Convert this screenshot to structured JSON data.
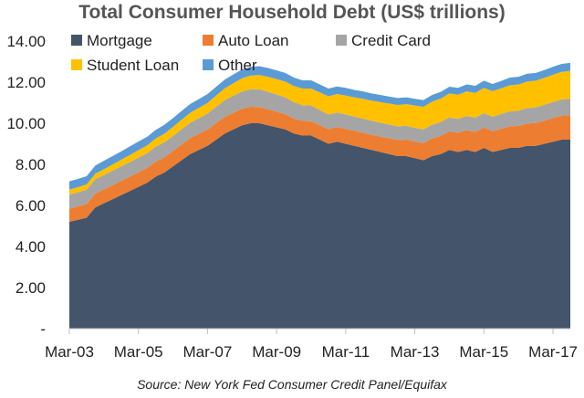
{
  "chart_data": {
    "type": "area",
    "stacked": true,
    "title": "Total Consumer Household Debt (US$ trillions)",
    "source": "Source: New York Fed Consumer Credit Panel/Equifax",
    "y_ticks": [
      "-",
      "2.00",
      "4.00",
      "6.00",
      "8.00",
      "10.00",
      "12.00",
      "14.00"
    ],
    "x_ticks": [
      "Mar-03",
      "Mar-05",
      "Mar-07",
      "Mar-09",
      "Mar-11",
      "Mar-13",
      "Mar-15",
      "Mar-17"
    ],
    "ylim": [
      0,
      14
    ],
    "grid": false,
    "legend_position": "top-left",
    "x": [
      "Mar-03",
      "Jun-03",
      "Sep-03",
      "Dec-03",
      "Mar-04",
      "Jun-04",
      "Sep-04",
      "Dec-04",
      "Mar-05",
      "Jun-05",
      "Sep-05",
      "Dec-05",
      "Mar-06",
      "Jun-06",
      "Sep-06",
      "Dec-06",
      "Mar-07",
      "Jun-07",
      "Sep-07",
      "Dec-07",
      "Mar-08",
      "Jun-08",
      "Sep-08",
      "Dec-08",
      "Mar-09",
      "Jun-09",
      "Sep-09",
      "Dec-09",
      "Mar-10",
      "Jun-10",
      "Sep-10",
      "Dec-10",
      "Mar-11",
      "Jun-11",
      "Sep-11",
      "Dec-11",
      "Mar-12",
      "Jun-12",
      "Sep-12",
      "Dec-12",
      "Mar-13",
      "Jun-13",
      "Sep-13",
      "Dec-13",
      "Mar-14",
      "Jun-14",
      "Sep-14",
      "Dec-14",
      "Mar-15",
      "Jun-15",
      "Sep-15",
      "Dec-15",
      "Mar-16",
      "Jun-16",
      "Sep-16",
      "Dec-16",
      "Mar-17",
      "Jun-17",
      "Sep-17"
    ],
    "series": [
      {
        "name": "Mortgage",
        "color": "#44546a",
        "values": [
          5.2,
          5.3,
          5.4,
          5.9,
          6.1,
          6.3,
          6.5,
          6.7,
          6.9,
          7.1,
          7.4,
          7.6,
          7.9,
          8.2,
          8.5,
          8.7,
          8.9,
          9.2,
          9.5,
          9.7,
          9.9,
          10.0,
          10.0,
          9.9,
          9.8,
          9.7,
          9.5,
          9.4,
          9.4,
          9.2,
          9.0,
          9.1,
          9.0,
          8.9,
          8.8,
          8.7,
          8.6,
          8.5,
          8.4,
          8.4,
          8.3,
          8.2,
          8.4,
          8.5,
          8.7,
          8.6,
          8.7,
          8.6,
          8.8,
          8.6,
          8.7,
          8.8,
          8.8,
          8.9,
          8.9,
          9.0,
          9.1,
          9.2,
          9.2
        ]
      },
      {
        "name": "Auto Loan",
        "color": "#ed7d31",
        "values": [
          0.64,
          0.65,
          0.66,
          0.67,
          0.68,
          0.69,
          0.69,
          0.7,
          0.71,
          0.72,
          0.73,
          0.74,
          0.75,
          0.77,
          0.78,
          0.79,
          0.8,
          0.81,
          0.81,
          0.81,
          0.81,
          0.8,
          0.79,
          0.78,
          0.76,
          0.74,
          0.73,
          0.71,
          0.7,
          0.7,
          0.71,
          0.71,
          0.72,
          0.73,
          0.74,
          0.74,
          0.75,
          0.77,
          0.78,
          0.8,
          0.81,
          0.83,
          0.86,
          0.88,
          0.91,
          0.93,
          0.96,
          0.97,
          0.99,
          1.01,
          1.03,
          1.05,
          1.07,
          1.09,
          1.11,
          1.13,
          1.15,
          1.17,
          1.19
        ]
      },
      {
        "name": "Credit Card",
        "color": "#a5a5a5",
        "values": [
          0.69,
          0.69,
          0.7,
          0.7,
          0.7,
          0.7,
          0.71,
          0.71,
          0.72,
          0.72,
          0.73,
          0.73,
          0.73,
          0.74,
          0.75,
          0.76,
          0.77,
          0.79,
          0.81,
          0.83,
          0.84,
          0.85,
          0.86,
          0.85,
          0.84,
          0.82,
          0.79,
          0.77,
          0.76,
          0.74,
          0.72,
          0.71,
          0.71,
          0.69,
          0.69,
          0.68,
          0.68,
          0.67,
          0.67,
          0.67,
          0.67,
          0.67,
          0.67,
          0.68,
          0.68,
          0.68,
          0.69,
          0.7,
          0.7,
          0.71,
          0.72,
          0.73,
          0.74,
          0.75,
          0.76,
          0.77,
          0.78,
          0.79,
          0.8
        ]
      },
      {
        "name": "Student Loan",
        "color": "#ffc000",
        "values": [
          0.24,
          0.25,
          0.26,
          0.27,
          0.28,
          0.3,
          0.32,
          0.34,
          0.36,
          0.38,
          0.4,
          0.42,
          0.44,
          0.46,
          0.48,
          0.5,
          0.52,
          0.55,
          0.58,
          0.61,
          0.64,
          0.67,
          0.7,
          0.73,
          0.75,
          0.77,
          0.79,
          0.81,
          0.83,
          0.86,
          0.88,
          0.9,
          0.92,
          0.94,
          0.96,
          0.98,
          1.0,
          1.02,
          1.04,
          1.06,
          1.08,
          1.1,
          1.12,
          1.14,
          1.16,
          1.18,
          1.2,
          1.21,
          1.23,
          1.24,
          1.25,
          1.27,
          1.28,
          1.29,
          1.3,
          1.31,
          1.33,
          1.34,
          1.36
        ]
      },
      {
        "name": "Other",
        "color": "#5b9bd5",
        "values": [
          0.4,
          0.4,
          0.4,
          0.4,
          0.41,
          0.41,
          0.41,
          0.42,
          0.42,
          0.42,
          0.42,
          0.43,
          0.43,
          0.43,
          0.43,
          0.43,
          0.43,
          0.43,
          0.43,
          0.43,
          0.43,
          0.43,
          0.43,
          0.43,
          0.42,
          0.42,
          0.41,
          0.4,
          0.4,
          0.39,
          0.38,
          0.37,
          0.37,
          0.36,
          0.36,
          0.35,
          0.35,
          0.34,
          0.34,
          0.33,
          0.33,
          0.33,
          0.33,
          0.33,
          0.33,
          0.33,
          0.34,
          0.34,
          0.35,
          0.35,
          0.36,
          0.37,
          0.37,
          0.38,
          0.38,
          0.38,
          0.39,
          0.39,
          0.39
        ]
      }
    ]
  }
}
